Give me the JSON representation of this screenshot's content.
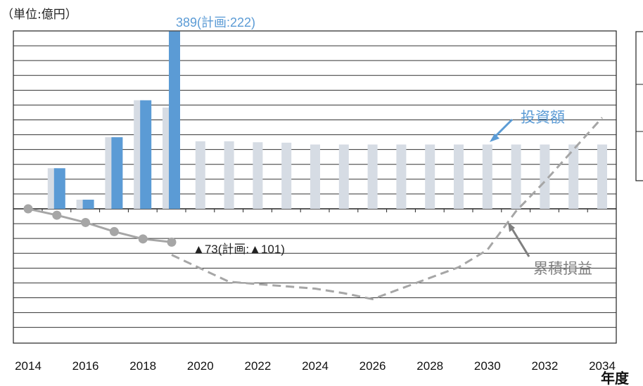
{
  "chart_data": {
    "type": "bar",
    "unit_label": "（単位:億円）",
    "x_axis_label": "年度",
    "x_tick_labels": [
      "2014",
      "2016",
      "2018",
      "2020",
      "2022",
      "2024",
      "2026",
      "2028",
      "2030",
      "2032",
      "2034"
    ],
    "y_range": [
      -260,
      400
    ],
    "gridline_step": 32.5,
    "colors": {
      "investment_actual": "#5b9bd5",
      "investment_plan": "#d6dce4",
      "cumulative_line": "#a6a6a6",
      "investment_label": "#5b9bd5",
      "cumulative_label": "#7f7f7f"
    },
    "investment_actual": {
      "years": [
        2015,
        2016,
        2017,
        2018,
        2019
      ],
      "values": [
        89,
        20,
        157,
        238,
        389
      ]
    },
    "investment_plan": {
      "years": [
        2015,
        2016,
        2017,
        2018,
        2019,
        2020,
        2021,
        2022,
        2023,
        2024,
        2025,
        2026,
        2027,
        2028,
        2029,
        2030,
        2031,
        2032,
        2033,
        2034
      ],
      "values": [
        89,
        20,
        157,
        238,
        222,
        148,
        148,
        146,
        145,
        141,
        141,
        141,
        141,
        141,
        141,
        141,
        141,
        141,
        141,
        141
      ]
    },
    "cumulative_actual": {
      "years": [
        2014,
        2015,
        2016,
        2017,
        2018,
        2019
      ],
      "values": [
        0,
        -14,
        -30,
        -50,
        -66,
        -73
      ]
    },
    "cumulative_plan": {
      "years": [
        2019,
        2021,
        2022,
        2023,
        2024,
        2025,
        2026,
        2029,
        2030,
        2031,
        2032,
        2034
      ],
      "values": [
        -101,
        -160,
        -165,
        -170,
        -175,
        -185,
        -198,
        -128,
        -90,
        -5,
        60,
        200
      ]
    },
    "labels": {
      "investment_annotation": "389(計画:222)",
      "cumulative_annotation": "▲73(計画:▲101)",
      "investment_series": "投資額",
      "cumulative_series": "累積損益"
    }
  }
}
